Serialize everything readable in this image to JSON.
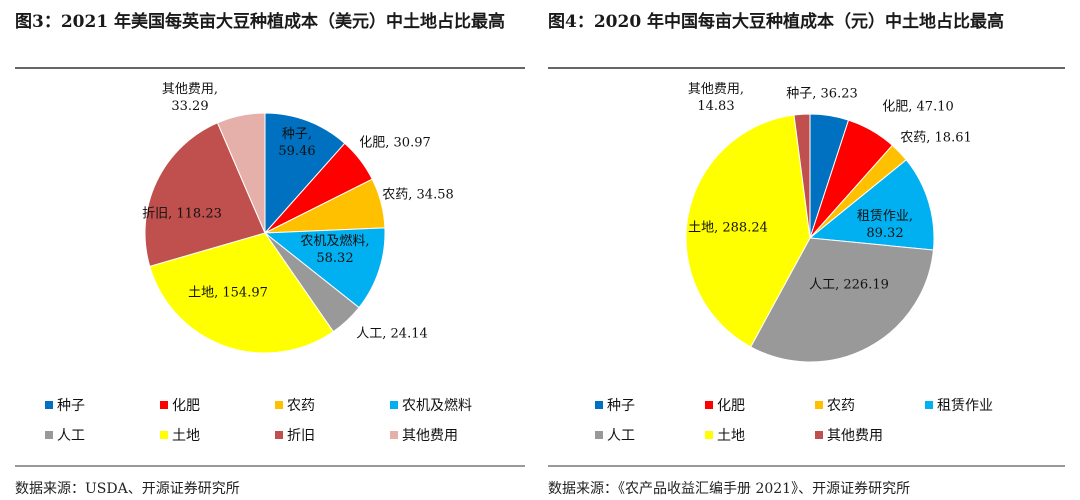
{
  "chart_data": [
    {
      "type": "pie",
      "title": "图3：2021 年美国每英亩大豆种植成本（美元）中土地占比最高",
      "source": "数据来源：USDA、开源证券研究所",
      "categories": [
        "种子",
        "化肥",
        "农药",
        "农机及燃料",
        "人工",
        "土地",
        "折旧",
        "其他费用"
      ],
      "values": [
        59.46,
        30.97,
        34.58,
        58.32,
        24.14,
        154.97,
        118.23,
        33.29
      ],
      "value_labels": [
        "种子,\n59.46",
        "化肥, 30.97",
        "农药, 34.58",
        "农机及燃料,\n58.32",
        "人工, 24.14",
        "土地, 154.97",
        "折旧, 118.23",
        "其他费用,\n33.29"
      ],
      "colors": [
        "#0070c0",
        "#ff0000",
        "#ffc000",
        "#00b0f0",
        "#999999",
        "#ffff00",
        "#c0504d",
        "#e6b0aa"
      ]
    },
    {
      "type": "pie",
      "title": "图4：2020 年中国每亩大豆种植成本（元）中土地占比最高",
      "source": "数据来源：《农产品收益汇编手册 2021》、开源证券研究所",
      "categories": [
        "种子",
        "化肥",
        "农药",
        "租赁作业",
        "人工",
        "土地",
        "其他费用"
      ],
      "values": [
        36.23,
        47.1,
        18.61,
        89.32,
        226.19,
        288.24,
        14.83
      ],
      "value_labels": [
        "种子, 36.23",
        "化肥, 47.10",
        "农药, 18.61",
        "租赁作业,\n89.32",
        "人工, 226.19",
        "土地, 288.24",
        "其他费用,\n14.83"
      ],
      "colors": [
        "#0070c0",
        "#ff0000",
        "#ffc000",
        "#00b0f0",
        "#999999",
        "#ffff00",
        "#c0504d"
      ]
    }
  ]
}
